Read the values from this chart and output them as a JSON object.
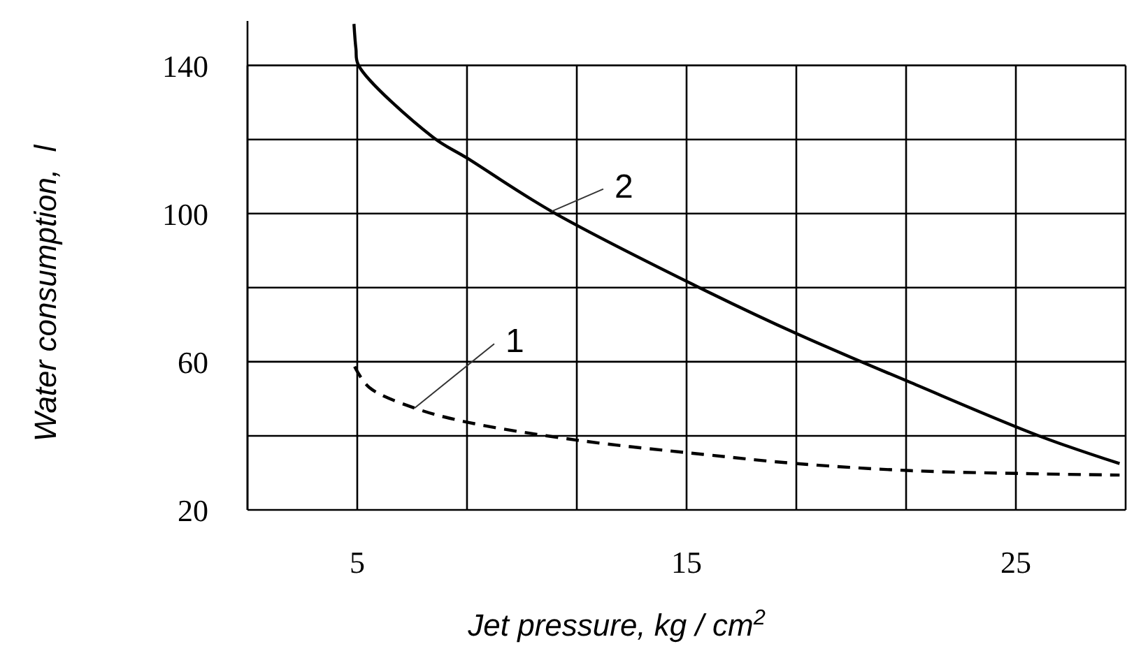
{
  "chart_data": {
    "type": "line",
    "xlabel": "Jet pressure, kg / cm$^{2}$",
    "ylabel": "Water consumption,  l",
    "grid": true,
    "xlim": [
      1.667,
      28.333
    ],
    "ylim": [
      20,
      152
    ],
    "xticks": [
      {
        "value": 1.667,
        "label": null
      },
      5,
      {
        "value": 8.333,
        "label": null
      },
      {
        "value": 11.667,
        "label": null
      },
      15,
      {
        "value": 18.333,
        "label": null
      },
      {
        "value": 21.667,
        "label": null
      },
      25,
      {
        "value": 28.333,
        "label": null
      }
    ],
    "yticks": [
      20,
      {
        "value": 40,
        "label": null
      },
      60,
      {
        "value": 80,
        "label": null
      },
      100,
      {
        "value": 120,
        "label": null
      },
      140
    ],
    "series": [
      {
        "name": "1",
        "color": "#000000",
        "line_style": "dashed",
        "x": [
          4.92,
          5.36,
          6.74,
          8.33,
          11.7,
          15.5,
          18.36,
          21.8,
          25.3,
          28.15
        ],
        "values": [
          58.7,
          53.1,
          47.5,
          43.7,
          38.8,
          35,
          32.5,
          30.6,
          29.8,
          29.4
        ]
      },
      {
        "name": "2",
        "color": "#000000",
        "line_style": "solid",
        "x": [
          4.9,
          4.96,
          5.04,
          7.3,
          8.33,
          10.9,
          15.3,
          18.36,
          21.8,
          25.7,
          28.15
        ],
        "values": [
          151.2,
          144.5,
          140,
          120.6,
          115,
          100.6,
          80.4,
          67.5,
          54.4,
          40,
          32.5
        ]
      }
    ]
  }
}
